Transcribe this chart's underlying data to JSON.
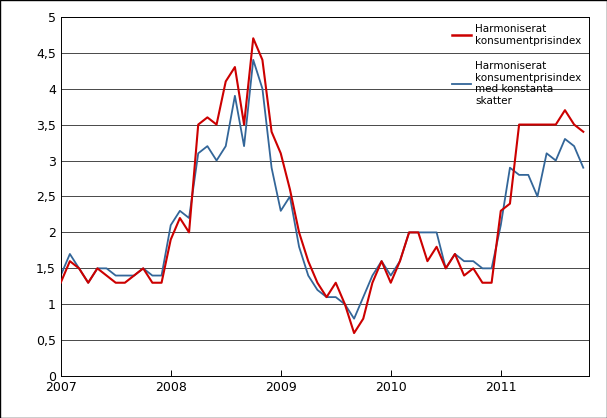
{
  "legend1": "Harmoniserat\nkonsumentprisindex",
  "legend2": "Harmoniserat\nkonsumentprisindex\nmed konstanta\nskatter",
  "color1": "#cc0000",
  "color2": "#336699",
  "ylim": [
    0,
    5
  ],
  "yticks": [
    0,
    0.5,
    1,
    1.5,
    2,
    2.5,
    3,
    3.5,
    4,
    4.5,
    5
  ],
  "ytick_labels": [
    "0",
    "0,5",
    "1",
    "1,5",
    "2",
    "2,5",
    "3",
    "3,5",
    "4",
    "4,5",
    "5"
  ],
  "xtick_positions": [
    2007,
    2008,
    2009,
    2010,
    2011
  ],
  "xtick_labels": [
    "2007",
    "2008",
    "2009",
    "2010",
    "2011"
  ],
  "background_color": "#ffffff",
  "hicp": [
    1.3,
    1.6,
    1.5,
    1.3,
    1.5,
    1.4,
    1.3,
    1.3,
    1.4,
    1.5,
    1.3,
    1.3,
    1.9,
    2.2,
    2.0,
    3.5,
    3.6,
    3.5,
    4.1,
    4.3,
    3.5,
    4.7,
    4.4,
    3.4,
    3.1,
    2.6,
    2.0,
    1.6,
    1.3,
    1.1,
    1.3,
    1.0,
    0.6,
    0.8,
    1.3,
    1.6,
    1.3,
    1.6,
    2.0,
    2.0,
    1.6,
    1.8,
    1.5,
    1.7,
    1.4,
    1.5,
    1.3,
    1.3,
    2.3,
    2.4,
    3.5,
    3.5,
    3.5,
    3.5,
    3.5,
    3.7,
    3.5,
    3.4
  ],
  "hicp_ct": [
    1.4,
    1.7,
    1.5,
    1.3,
    1.5,
    1.5,
    1.4,
    1.4,
    1.4,
    1.5,
    1.4,
    1.4,
    2.1,
    2.3,
    2.2,
    3.1,
    3.2,
    3.0,
    3.2,
    3.9,
    3.2,
    4.4,
    4.0,
    2.9,
    2.3,
    2.5,
    1.8,
    1.4,
    1.2,
    1.1,
    1.1,
    1.0,
    0.8,
    1.1,
    1.4,
    1.6,
    1.4,
    1.6,
    2.0,
    2.0,
    2.0,
    2.0,
    1.5,
    1.7,
    1.6,
    1.6,
    1.5,
    1.5,
    2.1,
    2.9,
    2.8,
    2.8,
    2.5,
    3.1,
    3.0,
    3.3,
    3.2,
    2.9
  ]
}
